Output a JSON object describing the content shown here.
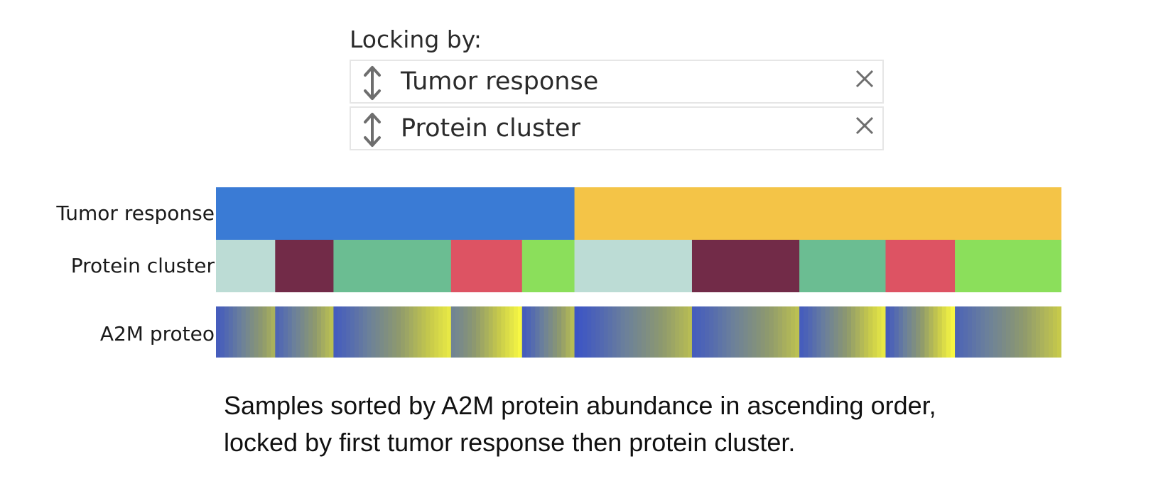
{
  "locking": {
    "title": "Locking by:",
    "items": [
      {
        "label": "Tumor response",
        "drag_icon": "vertical-arrows-icon",
        "close_icon": "close-icon"
      },
      {
        "label": "Protein cluster",
        "drag_icon": "vertical-arrows-icon",
        "close_icon": "close-icon"
      }
    ]
  },
  "tracks": {
    "tumor_response": {
      "label": "Tumor response",
      "segments": [
        {
          "start": 0.0,
          "end": 0.424,
          "color": "#3a7bd5"
        },
        {
          "start": 0.424,
          "end": 1.0,
          "color": "#f4c447"
        }
      ]
    },
    "protein_cluster": {
      "label": "Protein cluster",
      "segments": [
        {
          "start": 0.0,
          "end": 0.07,
          "color": "#bcdcd5"
        },
        {
          "start": 0.07,
          "end": 0.139,
          "color": "#722b48"
        },
        {
          "start": 0.139,
          "end": 0.278,
          "color": "#6bbd92"
        },
        {
          "start": 0.278,
          "end": 0.362,
          "color": "#dd5363"
        },
        {
          "start": 0.362,
          "end": 0.424,
          "color": "#8bdf5b"
        },
        {
          "start": 0.424,
          "end": 0.563,
          "color": "#bcdcd5"
        },
        {
          "start": 0.563,
          "end": 0.69,
          "color": "#722b48"
        },
        {
          "start": 0.69,
          "end": 0.792,
          "color": "#6bbd92"
        },
        {
          "start": 0.792,
          "end": 0.874,
          "color": "#dd5363"
        },
        {
          "start": 0.874,
          "end": 1.0,
          "color": "#8bdf5b"
        }
      ]
    },
    "a2m": {
      "label": "A2M proteo",
      "colorscale": [
        "#3d55c4",
        "#6a7f9c",
        "#8f9a6d",
        "#c6c94b",
        "#f7f744"
      ],
      "groups": [
        {
          "start": 0.0,
          "end": 0.07,
          "low": 0.05,
          "high": 0.62
        },
        {
          "start": 0.07,
          "end": 0.139,
          "low": 0.1,
          "high": 0.7
        },
        {
          "start": 0.139,
          "end": 0.278,
          "low": 0.05,
          "high": 0.92
        },
        {
          "start": 0.278,
          "end": 0.362,
          "low": 0.3,
          "high": 1.0
        },
        {
          "start": 0.362,
          "end": 0.424,
          "low": 0.05,
          "high": 0.68
        },
        {
          "start": 0.424,
          "end": 0.563,
          "low": 0.0,
          "high": 0.68
        },
        {
          "start": 0.563,
          "end": 0.69,
          "low": 0.05,
          "high": 0.7
        },
        {
          "start": 0.69,
          "end": 0.792,
          "low": 0.05,
          "high": 0.92
        },
        {
          "start": 0.792,
          "end": 0.874,
          "low": 0.05,
          "high": 1.0
        },
        {
          "start": 0.874,
          "end": 1.0,
          "low": 0.1,
          "high": 0.75
        }
      ]
    }
  },
  "caption": {
    "line1": "Samples sorted by A2M protein abundance in ascending order,",
    "line2": "locked by first tumor response then protein cluster."
  }
}
